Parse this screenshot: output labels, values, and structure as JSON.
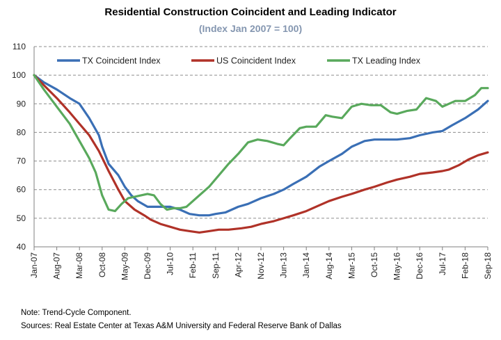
{
  "chart_data": {
    "type": "line",
    "title": "Residential Construction Coincident and Leading Indicator",
    "subtitle": "(Index Jan 2007 = 100)",
    "xlabel": "",
    "ylabel": "",
    "ylim": [
      40,
      110
    ],
    "yticks": [
      40,
      50,
      60,
      70,
      80,
      90,
      100,
      110
    ],
    "xlim": [
      "Jan-07",
      "Sep-18"
    ],
    "x_tick_labels": [
      "Jan-07",
      "Aug-07",
      "Mar-08",
      "Oct-08",
      "May-09",
      "Dec-09",
      "Jul-10",
      "Feb-11",
      "Sep-11",
      "Apr-12",
      "Nov-12",
      "Jun-13",
      "Jan-14",
      "Aug-14",
      "Mar-15",
      "Oct-15",
      "May-16",
      "Dec-16",
      "Jul-17",
      "Feb-18",
      "Sep-18"
    ],
    "grid": "horizontal dashed",
    "legend_position": "top",
    "series": [
      {
        "name": "TX Coincident Index",
        "color": "#3a6fb5",
        "x": [
          "Jan-07",
          "Apr-07",
          "Aug-07",
          "Dec-07",
          "Mar-08",
          "Jun-08",
          "Sep-08",
          "Oct-08",
          "Dec-08",
          "Mar-09",
          "May-09",
          "Jul-09",
          "Sep-09",
          "Dec-09",
          "Mar-10",
          "Jul-10",
          "Oct-10",
          "Jan-11",
          "Apr-11",
          "Jul-11",
          "Sep-11",
          "Dec-11",
          "Apr-12",
          "Jul-12",
          "Nov-12",
          "Mar-13",
          "Jun-13",
          "Sep-13",
          "Jan-14",
          "May-14",
          "Aug-14",
          "Dec-14",
          "Mar-15",
          "Jul-15",
          "Oct-15",
          "Jan-16",
          "May-16",
          "Sep-16",
          "Dec-16",
          "Apr-17",
          "Jul-17",
          "Oct-17",
          "Feb-18",
          "Jun-18",
          "Sep-18"
        ],
        "values": [
          100,
          97.5,
          95,
          92,
          90,
          85,
          79,
          75,
          69,
          65,
          61,
          58,
          56,
          54,
          54,
          54,
          53,
          51.5,
          51,
          51,
          51.5,
          52,
          54,
          55,
          57,
          58.5,
          60,
          62,
          64.5,
          68,
          70,
          72.5,
          75,
          77,
          77.5,
          77.5,
          77.5,
          78,
          79,
          80,
          80.5,
          82.5,
          85,
          88,
          91
        ]
      },
      {
        "name": "US Coincident Index",
        "color": "#b03228",
        "x": [
          "Jan-07",
          "Apr-07",
          "Aug-07",
          "Dec-07",
          "Mar-08",
          "Jun-08",
          "Sep-08",
          "Dec-08",
          "Mar-09",
          "May-09",
          "Aug-09",
          "Nov-09",
          "Jan-10",
          "Apr-10",
          "Jul-10",
          "Oct-10",
          "Jan-11",
          "Apr-11",
          "Jul-11",
          "Oct-11",
          "Jan-12",
          "May-12",
          "Aug-12",
          "Nov-12",
          "Mar-13",
          "Jun-13",
          "Sep-13",
          "Jan-14",
          "May-14",
          "Aug-14",
          "Dec-14",
          "Mar-15",
          "Jul-15",
          "Oct-15",
          "Feb-16",
          "May-16",
          "Sep-16",
          "Dec-16",
          "Apr-17",
          "Jul-17",
          "Sep-17",
          "Dec-17",
          "Mar-18",
          "Jun-18",
          "Sep-18"
        ],
        "values": [
          100,
          96.5,
          92,
          87,
          83,
          79,
          73.5,
          66.5,
          60,
          56,
          53,
          51,
          49.5,
          48,
          47,
          46,
          45.5,
          45,
          45.5,
          46,
          46,
          46.5,
          47,
          48,
          49,
          50,
          51,
          52.5,
          54.5,
          56,
          57.5,
          58.5,
          60,
          61,
          62.5,
          63.5,
          64.5,
          65.5,
          66,
          66.5,
          67,
          68.5,
          70.5,
          72,
          73
        ]
      },
      {
        "name": "TX Leading Index",
        "color": "#59a95c",
        "x": [
          "Jan-07",
          "Apr-07",
          "Aug-07",
          "Dec-07",
          "Mar-08",
          "Jun-08",
          "Aug-08",
          "Oct-08",
          "Dec-08",
          "Feb-09",
          "Apr-09",
          "Jun-09",
          "Aug-09",
          "Oct-09",
          "Dec-09",
          "Feb-10",
          "Apr-10",
          "Jun-10",
          "Aug-10",
          "Oct-10",
          "Dec-10",
          "Feb-11",
          "Apr-11",
          "Jul-11",
          "Oct-11",
          "Jan-12",
          "Apr-12",
          "Jul-12",
          "Oct-12",
          "Jan-13",
          "Apr-13",
          "Jun-13",
          "Aug-13",
          "Nov-13",
          "Jan-14",
          "Apr-14",
          "Jul-14",
          "Sep-14",
          "Dec-14",
          "Mar-15",
          "Jun-15",
          "Sep-15",
          "Dec-15",
          "Mar-16",
          "May-16",
          "Aug-16",
          "Nov-16",
          "Feb-17",
          "May-17",
          "Jul-17",
          "Sep-17",
          "Nov-17",
          "Feb-18",
          "May-18",
          "Jul-18",
          "Sep-18"
        ],
        "values": [
          100,
          95,
          89,
          83,
          77,
          71,
          66,
          58,
          53,
          52.5,
          55,
          57,
          57.5,
          58,
          58.5,
          58,
          55,
          53,
          53.5,
          53.5,
          54,
          56,
          58,
          61,
          65,
          69,
          72.5,
          76.5,
          77.5,
          77,
          76,
          75.5,
          78,
          81.5,
          82,
          82,
          86,
          85.5,
          85,
          89,
          90,
          89.5,
          89.5,
          87,
          86.5,
          87.5,
          88,
          92,
          91,
          89,
          90,
          91,
          91,
          93,
          95.5,
          95.5
        ]
      }
    ]
  },
  "footer": {
    "note": "Note: Trend-Cycle Component.",
    "sources": "Sources: Real Estate Center at Texas A&M University and Federal Reserve Bank of Dallas"
  }
}
